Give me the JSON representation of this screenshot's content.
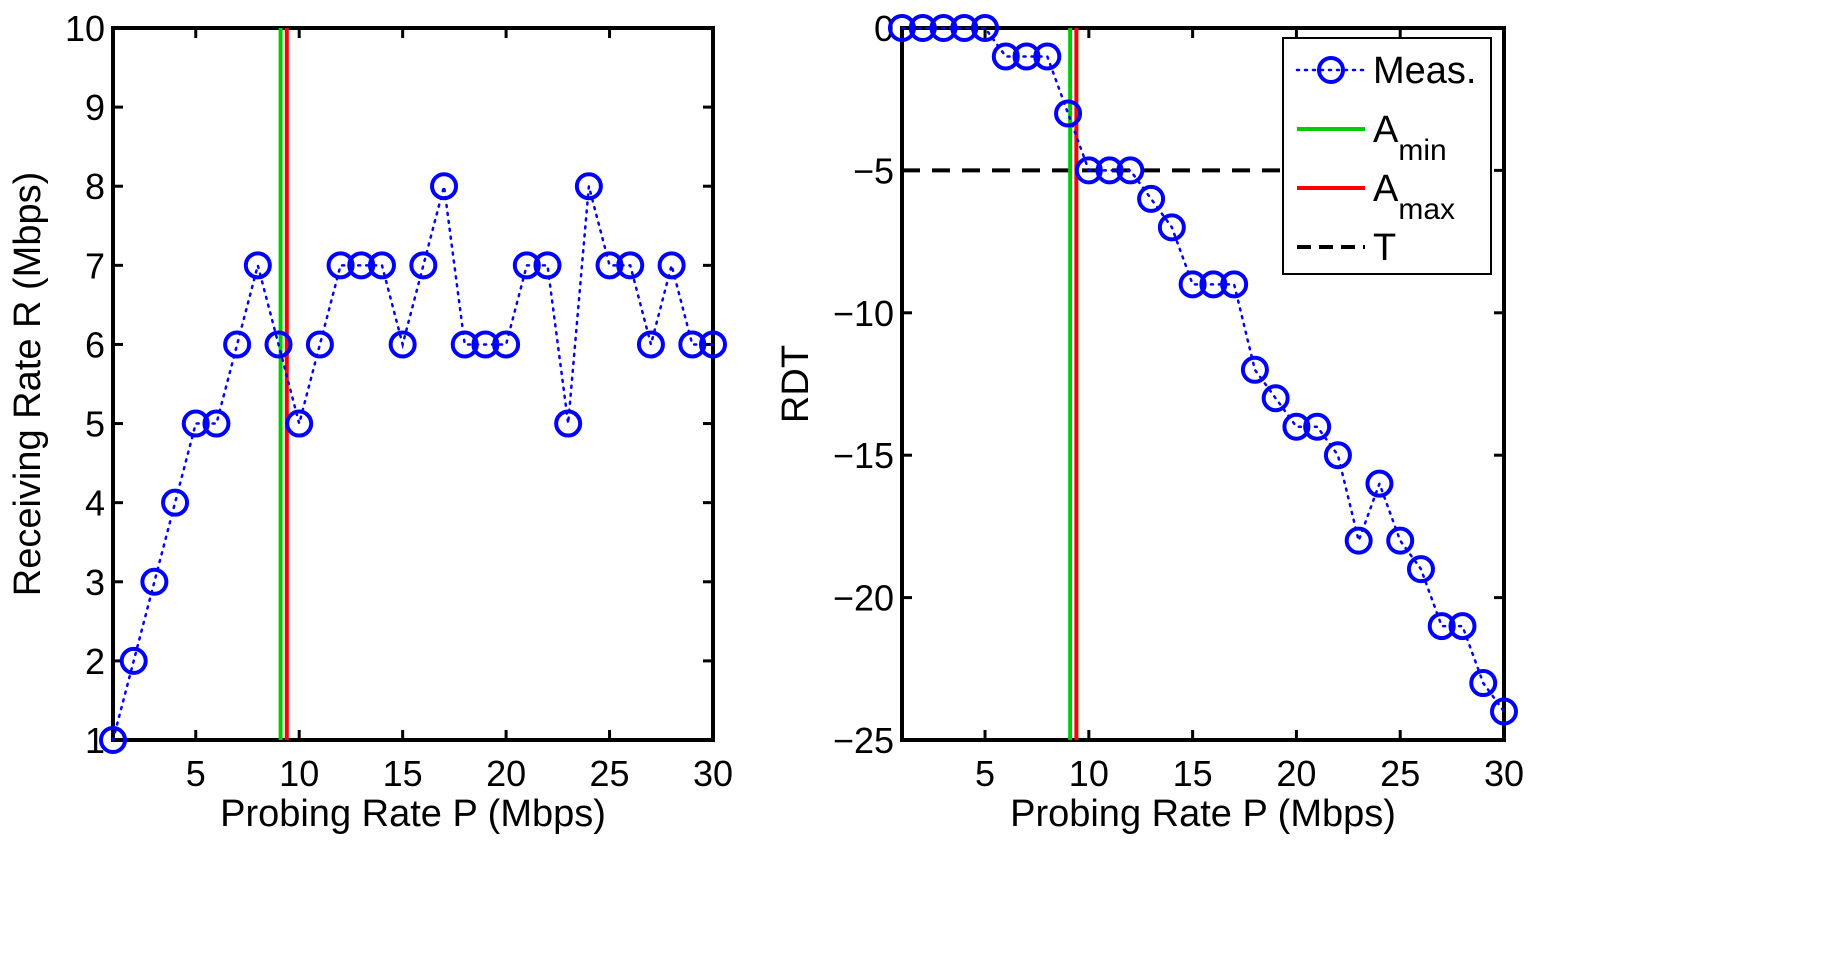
{
  "chart_data": [
    {
      "type": "line",
      "xlabel": "Probing Rate P (Mbps)",
      "ylabel": "Receiving Rate R (Mbps)",
      "xlim": [
        1,
        30
      ],
      "ylim": [
        1,
        10
      ],
      "xticks": [
        5,
        10,
        15,
        20,
        25,
        30
      ],
      "yticks": [
        1,
        2,
        3,
        4,
        5,
        6,
        7,
        8,
        9,
        10
      ],
      "grid": false,
      "series": [
        {
          "name": "Meas.",
          "color": "#0000ff",
          "style": "dotted-circles",
          "x": [
            1,
            2,
            3,
            4,
            5,
            6,
            7,
            8,
            9,
            10,
            11,
            12,
            13,
            14,
            15,
            16,
            17,
            18,
            19,
            20,
            21,
            22,
            23,
            24,
            25,
            26,
            27,
            28,
            29,
            30
          ],
          "y": [
            1,
            2,
            3,
            4,
            5,
            5,
            6,
            7,
            6,
            5,
            6,
            7,
            7,
            7,
            6,
            7,
            8,
            6,
            6,
            6,
            7,
            7,
            5,
            8,
            7,
            7,
            6,
            7,
            6,
            6
          ]
        }
      ],
      "vlines": [
        {
          "name": "A_min",
          "x": 9.1,
          "color": "#00cc00"
        },
        {
          "name": "A_max",
          "x": 9.4,
          "color": "#ff0000"
        }
      ]
    },
    {
      "type": "line",
      "xlabel": "Probing Rate P (Mbps)",
      "ylabel": "RDT",
      "xlim": [
        1,
        30
      ],
      "ylim": [
        -25,
        0
      ],
      "xticks": [
        5,
        10,
        15,
        20,
        25,
        30
      ],
      "yticks": [
        0,
        -5,
        -10,
        -15,
        -20,
        -25
      ],
      "ytick_labels": [
        "0",
        "−5",
        "−10",
        "−15",
        "−20",
        "−25"
      ],
      "grid": false,
      "legend_position": "top-right",
      "series": [
        {
          "name": "Meas.",
          "color": "#0000ff",
          "style": "dotted-circles",
          "x": [
            1,
            2,
            3,
            4,
            5,
            6,
            7,
            8,
            9,
            10,
            11,
            12,
            13,
            14,
            15,
            16,
            17,
            18,
            19,
            20,
            21,
            22,
            23,
            24,
            25,
            26,
            27,
            28,
            29,
            30
          ],
          "y": [
            0,
            0,
            0,
            0,
            0,
            -1,
            -1,
            -1,
            -3,
            -5,
            -5,
            -5,
            -6,
            -7,
            -9,
            -9,
            -9,
            -12,
            -13,
            -14,
            -14,
            -15,
            -18,
            -16,
            -18,
            -19,
            -21,
            -21,
            -23,
            -24
          ]
        }
      ],
      "vlines": [
        {
          "name": "A_min",
          "x": 9.1,
          "color": "#00cc00"
        },
        {
          "name": "A_max",
          "x": 9.4,
          "color": "#ff0000"
        }
      ],
      "hlines": [
        {
          "name": "T",
          "y": -5,
          "color": "#000000",
          "style": "dashed"
        }
      ],
      "legend": {
        "entries": [
          {
            "label": "Meas.",
            "sub": "",
            "color": "#0000ff",
            "kind": "marker"
          },
          {
            "label": "A",
            "sub": "min",
            "color": "#00cc00",
            "kind": "line"
          },
          {
            "label": "A",
            "sub": "max",
            "color": "#ff0000",
            "kind": "line"
          },
          {
            "label": "T",
            "sub": "",
            "color": "#000000",
            "kind": "dashed"
          }
        ]
      }
    }
  ]
}
